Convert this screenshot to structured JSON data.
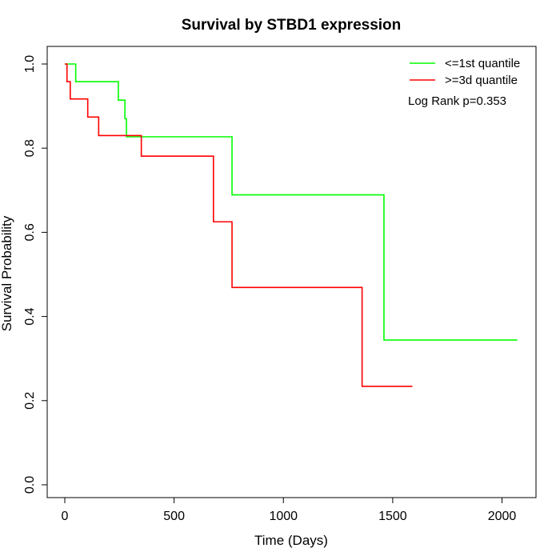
{
  "chart_data": {
    "type": "line",
    "title": "Survival by STBD1 expression",
    "xlabel": "Time (Days)",
    "ylabel": "Survival Probability",
    "xlim": [
      0,
      2070
    ],
    "ylim": [
      0,
      1
    ],
    "x_ticks": [
      0,
      500,
      1000,
      1500,
      2000
    ],
    "x_tick_labels": [
      "0",
      "500",
      "1000",
      "1500",
      "2000"
    ],
    "y_ticks": [
      0,
      0.2,
      0.4,
      0.6,
      0.8,
      1.0
    ],
    "y_tick_labels": [
      "0.0",
      "0.2",
      "0.4",
      "0.6",
      "0.8",
      "1.0"
    ],
    "grid": false,
    "legend_position": "top-right",
    "annotation": "Log Rank p=0.353",
    "series": [
      {
        "name": "<=1st quantile",
        "color": "#00ff00",
        "step": true,
        "x": [
          0,
          50,
          245,
          275,
          282,
          285,
          765,
          1460,
          2070
        ],
        "y": [
          1.0,
          0.958,
          0.914,
          0.87,
          0.827,
          0.827,
          0.689,
          0.344,
          0.344
        ]
      },
      {
        "name": ">=3d quantile",
        "color": "#ff0000",
        "step": true,
        "x": [
          0,
          10,
          25,
          105,
          155,
          350,
          680,
          765,
          1360,
          1590
        ],
        "y": [
          1.0,
          0.958,
          0.917,
          0.874,
          0.83,
          0.781,
          0.625,
          0.469,
          0.234,
          0.234
        ]
      }
    ]
  }
}
